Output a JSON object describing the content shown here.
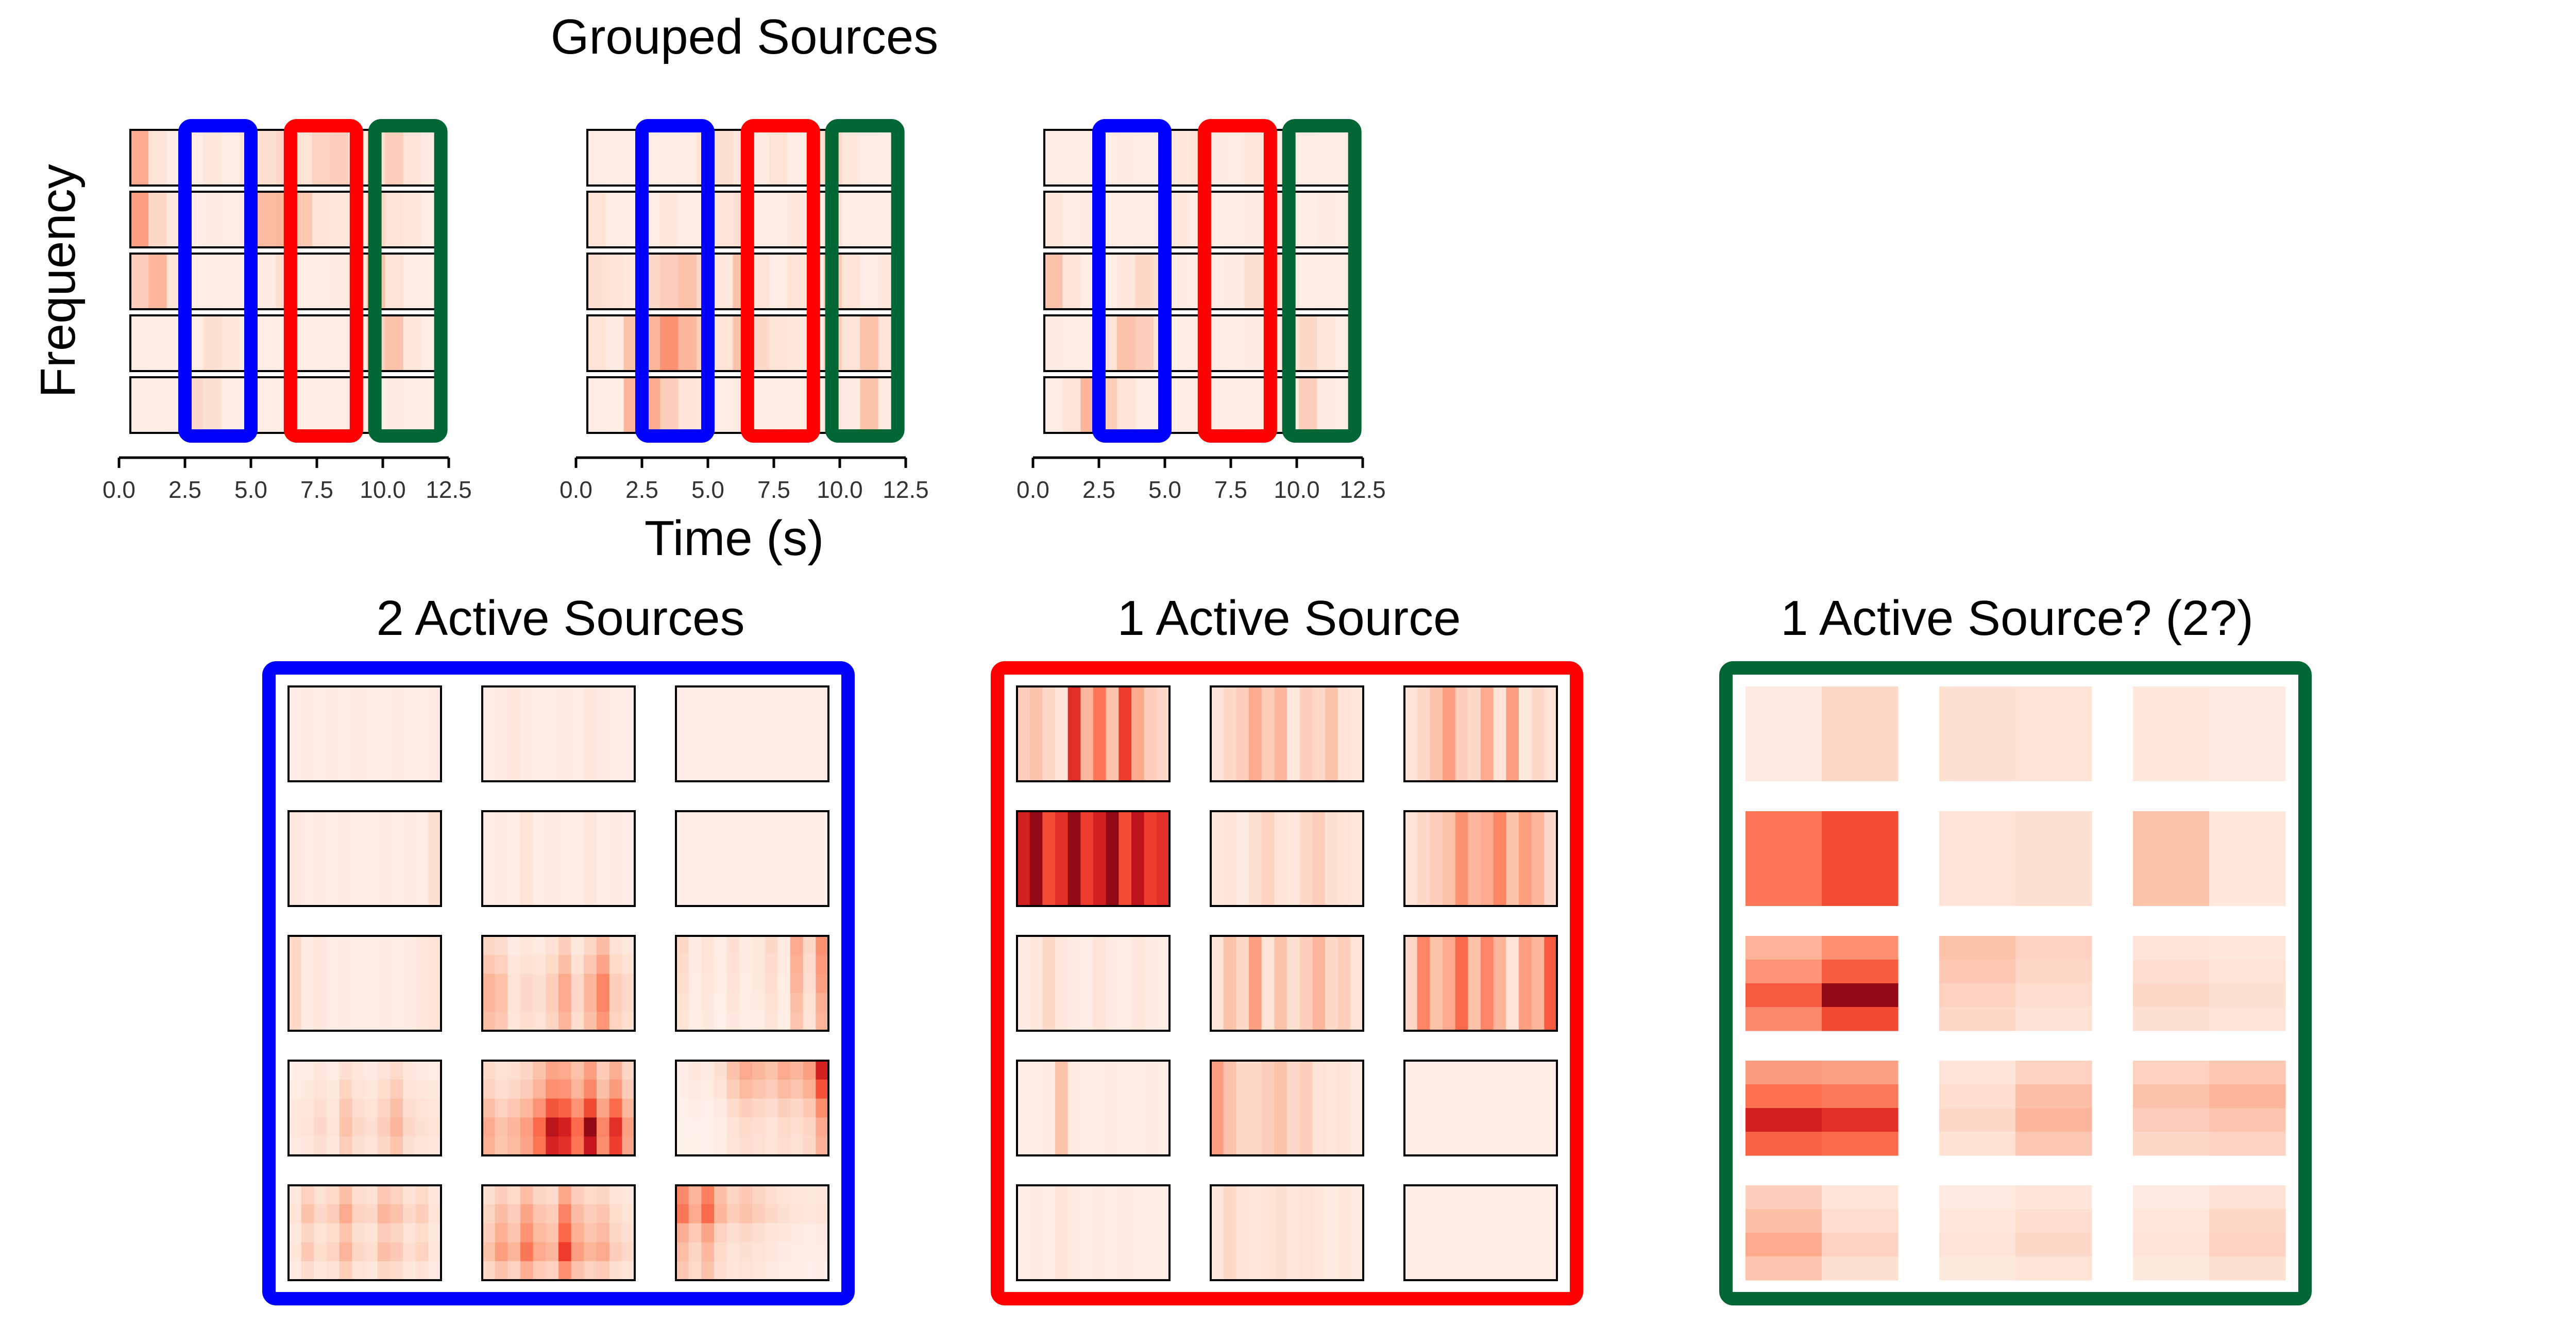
{
  "titles": {
    "top": "Grouped Sources",
    "ylabel": "Frequency",
    "xlabel": "Time (s)",
    "blue": "2 Active Sources",
    "red": "1 Active Source",
    "green": "1 Active Source? (2?)"
  },
  "colors": {
    "blue": "#0000ff",
    "red": "#ff0000",
    "green": "#006633",
    "heat_low": "#fff5f0",
    "heat_high": "#67000d"
  },
  "chart_data": [
    {
      "type": "heatmap",
      "title": "Grouped Sources",
      "xlabel": "Time (s)",
      "ylabel": "Frequency",
      "x_ticks": [
        "0.0",
        "2.5",
        "5.0",
        "7.5",
        "10.0",
        "12.5"
      ],
      "xlim": [
        0,
        12.5
      ],
      "panels": 3,
      "rows_per_panel": 5,
      "groups": [
        {
          "name": "blue",
          "x_range": [
            2.5,
            5.0
          ]
        },
        {
          "name": "red",
          "x_range": [
            6.5,
            9.0
          ]
        },
        {
          "name": "green",
          "x_range": [
            9.7,
            12.2
          ]
        }
      ],
      "panel_intensity": [
        [
          [
            0.35,
            0.1,
            0.05,
            0.05,
            0.08,
            0.05,
            0.1,
            0.12,
            0.15,
            0.1,
            0.18,
            0.2,
            0.05,
            0.12,
            0.2,
            0.1,
            0.06
          ],
          [
            0.4,
            0.15,
            0.08,
            0.04,
            0.06,
            0.05,
            0.06,
            0.28,
            0.3,
            0.22,
            0.1,
            0.08,
            0.04,
            0.15,
            0.1,
            0.08,
            0.05
          ],
          [
            0.2,
            0.3,
            0.1,
            0.05,
            0.05,
            0.04,
            0.05,
            0.06,
            0.12,
            0.04,
            0.05,
            0.06,
            0.08,
            0.25,
            0.1,
            0.05,
            0.05
          ],
          [
            0.05,
            0.04,
            0.04,
            0.05,
            0.12,
            0.08,
            0.05,
            0.05,
            0.04,
            0.04,
            0.04,
            0.05,
            0.04,
            0.18,
            0.25,
            0.08,
            0.05
          ],
          [
            0.04,
            0.04,
            0.05,
            0.15,
            0.12,
            0.05,
            0.04,
            0.05,
            0.04,
            0.04,
            0.04,
            0.05,
            0.04,
            0.04,
            0.06,
            0.05,
            0.04
          ]
        ],
        [
          [
            0.05,
            0.04,
            0.05,
            0.05,
            0.04,
            0.05,
            0.1,
            0.12,
            0.08,
            0.06,
            0.1,
            0.05,
            0.12,
            0.15,
            0.08,
            0.05,
            0.04
          ],
          [
            0.1,
            0.05,
            0.04,
            0.05,
            0.08,
            0.05,
            0.05,
            0.1,
            0.12,
            0.05,
            0.05,
            0.08,
            0.05,
            0.12,
            0.05,
            0.04,
            0.04
          ],
          [
            0.12,
            0.1,
            0.08,
            0.15,
            0.2,
            0.25,
            0.15,
            0.08,
            0.25,
            0.1,
            0.05,
            0.1,
            0.06,
            0.22,
            0.1,
            0.05,
            0.08
          ],
          [
            0.1,
            0.06,
            0.25,
            0.3,
            0.45,
            0.3,
            0.2,
            0.1,
            0.25,
            0.15,
            0.1,
            0.08,
            0.06,
            0.2,
            0.1,
            0.25,
            0.1
          ],
          [
            0.05,
            0.04,
            0.3,
            0.35,
            0.2,
            0.1,
            0.08,
            0.05,
            0.06,
            0.05,
            0.04,
            0.05,
            0.05,
            0.1,
            0.06,
            0.25,
            0.06
          ]
        ],
        [
          [
            0.05,
            0.04,
            0.05,
            0.05,
            0.06,
            0.05,
            0.04,
            0.08,
            0.1,
            0.06,
            0.05,
            0.08,
            0.05,
            0.06,
            0.05,
            0.04,
            0.04
          ],
          [
            0.08,
            0.05,
            0.06,
            0.05,
            0.04,
            0.05,
            0.06,
            0.08,
            0.05,
            0.04,
            0.05,
            0.06,
            0.08,
            0.05,
            0.04,
            0.06,
            0.05
          ],
          [
            0.25,
            0.1,
            0.05,
            0.04,
            0.08,
            0.15,
            0.12,
            0.06,
            0.04,
            0.05,
            0.06,
            0.12,
            0.15,
            0.06,
            0.04,
            0.05,
            0.04
          ],
          [
            0.06,
            0.05,
            0.04,
            0.1,
            0.25,
            0.2,
            0.1,
            0.04,
            0.05,
            0.05,
            0.04,
            0.06,
            0.05,
            0.1,
            0.15,
            0.08,
            0.05
          ],
          [
            0.05,
            0.1,
            0.3,
            0.2,
            0.1,
            0.05,
            0.04,
            0.05,
            0.04,
            0.05,
            0.04,
            0.05,
            0.05,
            0.06,
            0.2,
            0.06,
            0.04
          ]
        ]
      ]
    },
    {
      "type": "heatmap",
      "title": "2 Active Sources",
      "grid": [
        5,
        3
      ],
      "cells": [
        {
          "v": [
            0.05,
            0.06,
            0.05,
            0.06,
            0.05,
            0.06,
            0.05,
            0.05,
            0.06,
            0.05,
            0.05,
            0.06
          ]
        },
        {
          "v": [
            0.05,
            0.06,
            0.08,
            0.06,
            0.05,
            0.05,
            0.06,
            0.05,
            0.08,
            0.06,
            0.05,
            0.05
          ]
        },
        {
          "v": [
            0.05,
            0.05,
            0.04,
            0.05,
            0.05,
            0.04,
            0.05,
            0.05,
            0.05,
            0.04,
            0.05,
            0.05
          ]
        },
        {
          "v": [
            0.08,
            0.05,
            0.06,
            0.05,
            0.06,
            0.05,
            0.05,
            0.06,
            0.05,
            0.06,
            0.05,
            0.12
          ]
        },
        {
          "v": [
            0.05,
            0.06,
            0.05,
            0.1,
            0.05,
            0.06,
            0.05,
            0.05,
            0.08,
            0.05,
            0.06,
            0.05
          ]
        },
        {
          "v": [
            0.04,
            0.04,
            0.05,
            0.04,
            0.04,
            0.05,
            0.04,
            0.04,
            0.05,
            0.04,
            0.04,
            0.04
          ]
        },
        {
          "v": [
            0.15,
            0.06,
            0.08,
            0.05,
            0.06,
            0.05,
            0.05,
            0.06,
            0.05,
            0.06,
            0.08,
            0.1
          ]
        },
        {
          "v": [
            0.3,
            0.25,
            0.1,
            0.15,
            0.12,
            0.2,
            0.35,
            0.15,
            0.3,
            0.5,
            0.2,
            0.15
          ],
          "vp": [
            0.3,
            0.6,
            1.0,
            1.0,
            0.8
          ]
        },
        {
          "v": [
            0.15,
            0.06,
            0.1,
            0.05,
            0.12,
            0.06,
            0.08,
            0.15,
            0.06,
            0.35,
            0.15,
            0.45
          ],
          "vp": [
            1.0,
            0.9,
            0.8,
            0.6,
            0.5
          ]
        },
        {
          "v": [
            0.08,
            0.1,
            0.15,
            0.1,
            0.25,
            0.15,
            0.12,
            0.2,
            0.3,
            0.15,
            0.12,
            0.1
          ],
          "vp": [
            0.2,
            0.5,
            0.8,
            1.0,
            0.7
          ]
        },
        {
          "v": [
            0.35,
            0.25,
            0.3,
            0.4,
            0.6,
            0.9,
            0.85,
            0.6,
            0.95,
            0.5,
            0.8,
            0.4
          ],
          "vp": [
            0.1,
            0.25,
            0.6,
            1.0,
            0.9
          ]
        },
        {
          "v": [
            0.05,
            0.08,
            0.06,
            0.12,
            0.25,
            0.35,
            0.3,
            0.25,
            0.35,
            0.3,
            0.4,
            0.85
          ],
          "vp": [
            1.0,
            0.7,
            0.3,
            0.1,
            0.05
          ]
        },
        {
          "v": [
            0.1,
            0.25,
            0.15,
            0.2,
            0.35,
            0.18,
            0.15,
            0.3,
            0.25,
            0.15,
            0.2,
            0.1
          ],
          "vp": [
            0.6,
            1.0,
            0.5,
            0.8,
            0.3
          ]
        },
        {
          "v": [
            0.25,
            0.4,
            0.3,
            0.55,
            0.35,
            0.3,
            0.75,
            0.4,
            0.3,
            0.35,
            0.2,
            0.15
          ],
          "vp": [
            0.2,
            0.5,
            0.7,
            1.0,
            0.4
          ]
        },
        {
          "v": [
            0.55,
            0.35,
            0.6,
            0.3,
            0.2,
            0.25,
            0.2,
            0.15,
            0.12,
            0.1,
            0.08,
            0.1
          ],
          "vp": [
            0.8,
            1.0,
            0.4,
            0.2,
            0.1
          ]
        }
      ]
    },
    {
      "type": "heatmap",
      "title": "1 Active Source",
      "grid": [
        5,
        3
      ],
      "cells": [
        {
          "v": [
            0.2,
            0.25,
            0.15,
            0.1,
            0.8,
            0.3,
            0.55,
            0.25,
            0.75,
            0.35,
            0.2,
            0.15
          ]
        },
        {
          "v": [
            0.1,
            0.15,
            0.2,
            0.35,
            0.2,
            0.3,
            0.08,
            0.2,
            0.15,
            0.25,
            0.1,
            0.08
          ]
        },
        {
          "v": [
            0.1,
            0.15,
            0.25,
            0.4,
            0.2,
            0.15,
            0.35,
            0.1,
            0.4,
            0.08,
            0.15,
            0.1
          ]
        },
        {
          "v": [
            0.85,
            0.95,
            0.7,
            0.8,
            0.95,
            0.75,
            0.85,
            0.95,
            0.7,
            0.9,
            0.75,
            0.8
          ]
        },
        {
          "v": [
            0.08,
            0.1,
            0.06,
            0.12,
            0.18,
            0.1,
            0.08,
            0.15,
            0.2,
            0.12,
            0.1,
            0.08
          ]
        },
        {
          "v": [
            0.1,
            0.15,
            0.2,
            0.25,
            0.45,
            0.3,
            0.35,
            0.5,
            0.25,
            0.4,
            0.3,
            0.15
          ]
        },
        {
          "v": [
            0.06,
            0.08,
            0.15,
            0.08,
            0.06,
            0.05,
            0.1,
            0.06,
            0.05,
            0.08,
            0.06,
            0.05
          ]
        },
        {
          "v": [
            0.1,
            0.25,
            0.15,
            0.4,
            0.1,
            0.25,
            0.12,
            0.2,
            0.3,
            0.15,
            0.2,
            0.1
          ]
        },
        {
          "v": [
            0.15,
            0.5,
            0.25,
            0.35,
            0.6,
            0.25,
            0.5,
            0.3,
            0.1,
            0.4,
            0.3,
            0.65
          ]
        },
        {
          "v": [
            0.05,
            0.05,
            0.06,
            0.25,
            0.06,
            0.05,
            0.05,
            0.06,
            0.05,
            0.05,
            0.06,
            0.05
          ]
        },
        {
          "v": [
            0.4,
            0.25,
            0.15,
            0.15,
            0.2,
            0.25,
            0.15,
            0.2,
            0.1,
            0.08,
            0.1,
            0.06
          ]
        },
        {
          "v": [
            0.04,
            0.04,
            0.04,
            0.04,
            0.04,
            0.04,
            0.04,
            0.04,
            0.04,
            0.04,
            0.04,
            0.04
          ]
        },
        {
          "v": [
            0.05,
            0.06,
            0.05,
            0.1,
            0.06,
            0.05,
            0.06,
            0.05,
            0.06,
            0.05,
            0.05,
            0.05
          ]
        },
        {
          "v": [
            0.08,
            0.15,
            0.1,
            0.08,
            0.1,
            0.12,
            0.08,
            0.1,
            0.08,
            0.06,
            0.08,
            0.06
          ]
        },
        {
          "v": [
            0.04,
            0.05,
            0.04,
            0.05,
            0.04,
            0.04,
            0.05,
            0.04,
            0.05,
            0.04,
            0.04,
            0.04
          ]
        }
      ]
    },
    {
      "type": "heatmap",
      "title": "1 Active Source? (2?)",
      "grid": [
        5,
        3
      ],
      "cells": [
        {
          "v": [
            0.06,
            0.15
          ]
        },
        {
          "v": [
            0.12,
            0.1
          ]
        },
        {
          "v": [
            0.08,
            0.06
          ]
        },
        {
          "v": [
            0.55,
            0.7
          ]
        },
        {
          "v": [
            0.1,
            0.12
          ]
        },
        {
          "v": [
            0.25,
            0.08
          ]
        },
        {
          "v": [
            0.65,
            0.95
          ],
          "vp": [
            0.2,
            0.5,
            1.0,
            0.6
          ]
        },
        {
          "v": [
            0.25,
            0.18
          ],
          "vp": [
            1.0,
            0.8,
            0.6,
            0.4
          ]
        },
        {
          "v": [
            0.15,
            0.12
          ],
          "vp": [
            0.4,
            0.8,
            1.0,
            0.7
          ]
        },
        {
          "v": [
            0.85,
            0.8
          ],
          "vp": [
            0.2,
            0.5,
            1.0,
            0.6
          ]
        },
        {
          "v": [
            0.15,
            0.3
          ],
          "vp": [
            0.4,
            0.8,
            1.0,
            0.6
          ]
        },
        {
          "v": [
            0.25,
            0.3
          ],
          "vp": [
            0.6,
            1.0,
            0.7,
            0.4
          ]
        },
        {
          "v": [
            0.35,
            0.18
          ],
          "vp": [
            0.3,
            0.6,
            1.0,
            0.5
          ]
        },
        {
          "v": [
            0.1,
            0.15
          ],
          "vp": [
            0.4,
            0.8,
            1.0,
            0.5
          ]
        },
        {
          "v": [
            0.1,
            0.18
          ],
          "vp": [
            0.4,
            0.8,
            1.0,
            0.5
          ]
        }
      ]
    }
  ]
}
